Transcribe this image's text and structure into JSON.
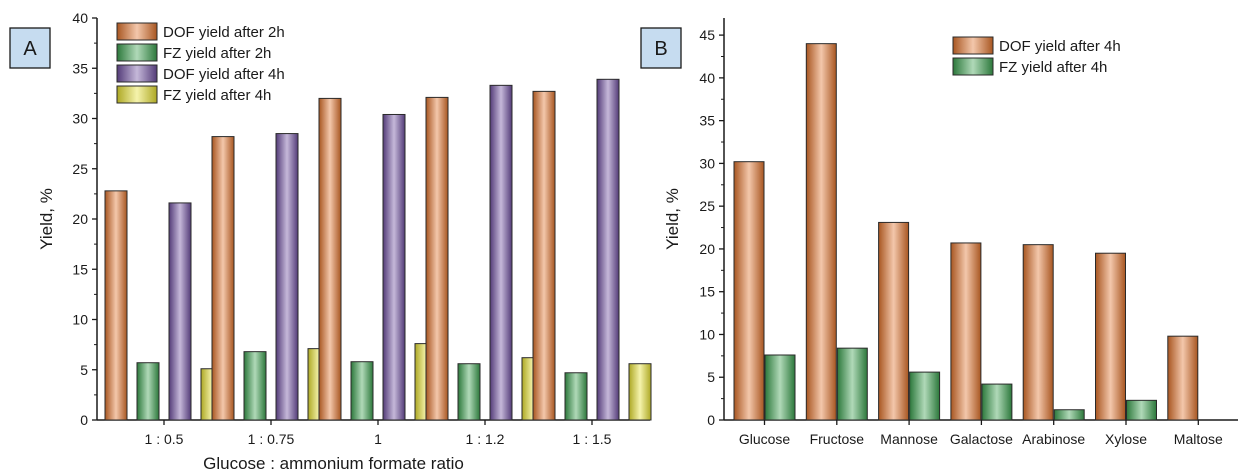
{
  "chart_data": [
    {
      "type": "bar",
      "panel_label": "A",
      "xlabel": "Glucose : ammonium formate ratio",
      "ylabel": "Yield, %",
      "ylim": [
        0,
        40
      ],
      "yticks": [
        0,
        5,
        10,
        15,
        20,
        25,
        30,
        35,
        40
      ],
      "categories": [
        "1 : 0.5",
        "1 : 0.75",
        "1",
        "1 : 1.2",
        "1 : 1.5"
      ],
      "legend_position": "top-left",
      "grid": false,
      "series": [
        {
          "name": "DOF yield after 2h",
          "color": "#e0722c",
          "values": [
            22.8,
            28.2,
            32.0,
            32.1,
            32.7
          ]
        },
        {
          "name": "FZ yield after 2h",
          "color": "#3aa04e",
          "values": [
            5.7,
            6.8,
            5.8,
            5.6,
            4.7
          ]
        },
        {
          "name": "DOF yield after 4h",
          "color": "#6e4ea0",
          "values": [
            21.6,
            28.5,
            30.4,
            33.3,
            33.9
          ]
        },
        {
          "name": "FZ yield after 4h",
          "color": "#e6e030",
          "values": [
            5.1,
            7.1,
            7.6,
            6.2,
            5.6
          ]
        }
      ]
    },
    {
      "type": "bar",
      "panel_label": "B",
      "xlabel": "",
      "ylabel": "Yield, %",
      "ylim": [
        0,
        47
      ],
      "yticks": [
        0,
        5,
        10,
        15,
        20,
        25,
        30,
        35,
        40,
        45
      ],
      "categories": [
        "Glucose",
        "Fructose",
        "Mannose",
        "Galactose",
        "Arabinose",
        "Xylose",
        "Maltose"
      ],
      "legend_position": "top-right",
      "grid": false,
      "series": [
        {
          "name": "DOF yield after 4h",
          "color": "#e0722c",
          "values": [
            30.2,
            44.0,
            23.1,
            20.7,
            20.5,
            19.5,
            9.8
          ]
        },
        {
          "name": "FZ yield after 4h",
          "color": "#3aa04e",
          "values": [
            7.6,
            8.4,
            5.6,
            4.2,
            1.2,
            2.3,
            null
          ]
        }
      ]
    }
  ]
}
